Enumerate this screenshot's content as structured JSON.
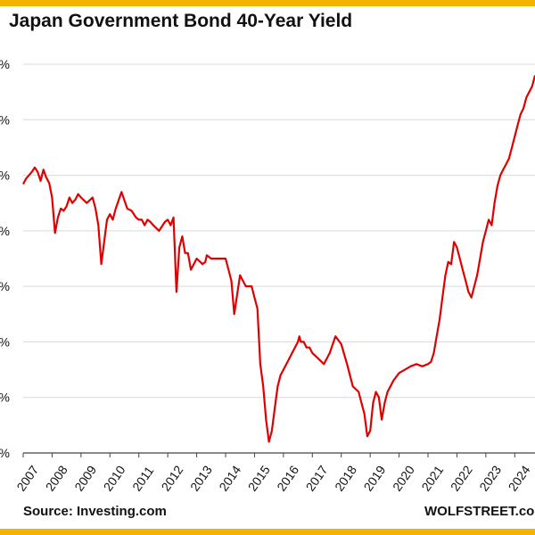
{
  "title": "Japan Government Bond 40-Year Yield",
  "source": "Source: Investing.com",
  "brand": "WOLFSTREET.com",
  "colors": {
    "line": "#e00000",
    "grid": "#d9d9d9",
    "border": "#f5b301",
    "axis": "#444444"
  },
  "chart_data": {
    "type": "line",
    "title": "Japan Government Bond 40-Year Yield",
    "xlabel": "",
    "ylabel": "",
    "xlim": [
      2007,
      2024.7
    ],
    "ylim": [
      0,
      3.5
    ],
    "grid": true,
    "y_tick_labels": [
      "%",
      "%",
      "%",
      "%",
      "%",
      "%",
      "%",
      "%"
    ],
    "x_tick_labels": [
      "2007",
      "2008",
      "2009",
      "2010",
      "2011",
      "2012",
      "2013",
      "2014",
      "2015",
      "2016",
      "2017",
      "2018",
      "2019",
      "2020",
      "2021",
      "2022",
      "2023",
      "2024"
    ],
    "series": [
      {
        "x": [
          2007.0,
          2007.1,
          2007.2,
          2007.3,
          2007.4,
          2007.5,
          2007.6,
          2007.7,
          2007.8,
          2007.9,
          2008.0,
          2008.1,
          2008.2,
          2008.3,
          2008.4,
          2008.5,
          2008.6,
          2008.7,
          2008.8,
          2008.9,
          2009.0,
          2009.2,
          2009.4,
          2009.5,
          2009.6,
          2009.7,
          2009.8,
          2009.9,
          2010.0,
          2010.1,
          2010.2,
          2010.4,
          2010.6,
          2010.75,
          2010.9,
          2011.0,
          2011.1,
          2011.2,
          2011.3,
          2011.4,
          2011.5,
          2011.7,
          2011.9,
          2012.0,
          2012.1,
          2012.2,
          2012.3,
          2012.4,
          2012.5,
          2012.6,
          2012.7,
          2012.8,
          2013.0,
          2013.2,
          2013.3,
          2013.35,
          2013.5,
          2013.7,
          2014.0,
          2014.2,
          2014.3,
          2014.5,
          2014.7,
          2014.9,
          2015.0,
          2015.1,
          2015.2,
          2015.3,
          2015.4,
          2015.5,
          2015.6,
          2015.7,
          2015.8,
          2015.9,
          2016.0,
          2016.2,
          2016.3,
          2016.4,
          2016.5,
          2016.55,
          2016.6,
          2016.7,
          2016.8,
          2016.9,
          2017.0,
          2017.2,
          2017.4,
          2017.6,
          2017.8,
          2018.0,
          2018.2,
          2018.4,
          2018.6,
          2018.7,
          2018.8,
          2018.9,
          2019.0,
          2019.1,
          2019.2,
          2019.3,
          2019.4,
          2019.5,
          2019.6,
          2019.7,
          2019.8,
          2020.0,
          2020.2,
          2020.4,
          2020.6,
          2020.8,
          2021.0,
          2021.1,
          2021.2,
          2021.3,
          2021.4,
          2021.5,
          2021.6,
          2021.7,
          2021.8,
          2021.9,
          2022.0,
          2022.1,
          2022.2,
          2022.3,
          2022.4,
          2022.5,
          2022.6,
          2022.7,
          2022.8,
          2022.9,
          2023.0,
          2023.1,
          2023.2,
          2023.3,
          2023.4,
          2023.5,
          2023.6,
          2023.7,
          2023.8,
          2023.9,
          2024.0,
          2024.1,
          2024.2,
          2024.3,
          2024.4,
          2024.5,
          2024.6,
          2024.7
        ],
        "y": [
          2.42,
          2.47,
          2.5,
          2.53,
          2.57,
          2.53,
          2.45,
          2.55,
          2.48,
          2.43,
          2.3,
          1.98,
          2.12,
          2.2,
          2.18,
          2.22,
          2.3,
          2.25,
          2.28,
          2.33,
          2.3,
          2.25,
          2.3,
          2.2,
          2.05,
          1.7,
          1.9,
          2.1,
          2.15,
          2.1,
          2.2,
          2.35,
          2.2,
          2.18,
          2.12,
          2.1,
          2.1,
          2.05,
          2.1,
          2.08,
          2.05,
          2.0,
          2.08,
          2.1,
          2.05,
          2.12,
          1.45,
          1.85,
          1.95,
          1.8,
          1.8,
          1.65,
          1.75,
          1.7,
          1.72,
          1.78,
          1.75,
          1.75,
          1.75,
          1.55,
          1.25,
          1.6,
          1.5,
          1.5,
          1.4,
          1.3,
          0.8,
          0.6,
          0.3,
          0.1,
          0.2,
          0.4,
          0.6,
          0.7,
          0.75,
          0.85,
          0.9,
          0.95,
          1.0,
          1.05,
          1.0,
          1.0,
          0.95,
          0.95,
          0.9,
          0.85,
          0.8,
          0.9,
          1.05,
          0.98,
          0.8,
          0.6,
          0.55,
          0.45,
          0.35,
          0.15,
          0.2,
          0.45,
          0.55,
          0.5,
          0.3,
          0.45,
          0.55,
          0.6,
          0.65,
          0.72,
          0.75,
          0.78,
          0.8,
          0.78,
          0.8,
          0.82,
          0.9,
          1.05,
          1.2,
          1.4,
          1.6,
          1.72,
          1.7,
          1.9,
          1.85,
          1.75,
          1.65,
          1.55,
          1.45,
          1.4,
          1.5,
          1.6,
          1.75,
          1.9,
          2.0,
          2.1,
          2.05,
          2.25,
          2.4,
          2.5,
          2.55,
          2.6,
          2.65,
          2.75,
          2.85,
          2.95,
          3.05,
          3.1,
          3.2,
          3.25,
          3.3,
          3.4
        ]
      }
    ]
  }
}
